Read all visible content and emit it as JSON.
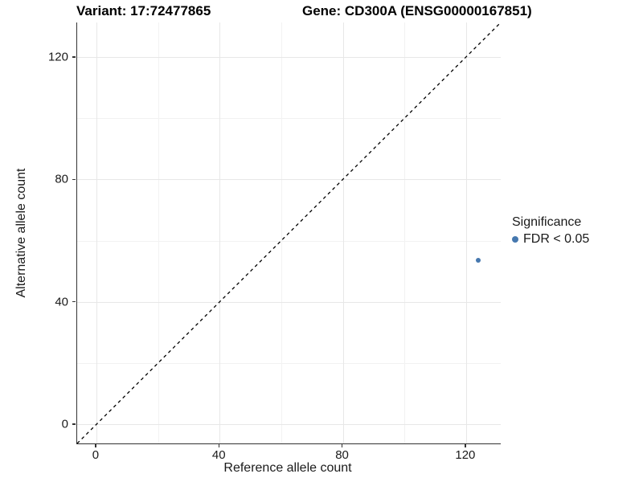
{
  "chart_data": {
    "type": "scatter",
    "title_left": "Variant: 17:72477865",
    "title_right": "Gene: CD300A (ENSG00000167851)",
    "xlabel": "Reference allele count",
    "ylabel": "Alternative allele count",
    "x_ticks": [
      0,
      40,
      80,
      120
    ],
    "y_ticks": [
      0,
      40,
      80,
      120
    ],
    "x_minor_ticks": [
      20,
      60,
      100
    ],
    "y_minor_ticks": [
      20,
      60,
      100
    ],
    "xlim": [
      -6.25,
      131.25
    ],
    "ylim": [
      -6.25,
      131.25
    ],
    "grid": "major+minor",
    "points": [
      {
        "x": 124,
        "y": 53.5,
        "series": "FDR < 0.05"
      }
    ],
    "abline": {
      "slope": 1,
      "intercept": 0,
      "style": "dashed",
      "color": "#000000"
    },
    "legend": {
      "position": "right",
      "title": "Significance",
      "entries": [
        {
          "label": "FDR < 0.05",
          "color": "#4678af"
        }
      ]
    },
    "colors": {
      "point": "#4678af",
      "axis_line": "#333333",
      "grid_major": "#e7e7e7",
      "grid_minor": "#f2f2f2"
    }
  }
}
